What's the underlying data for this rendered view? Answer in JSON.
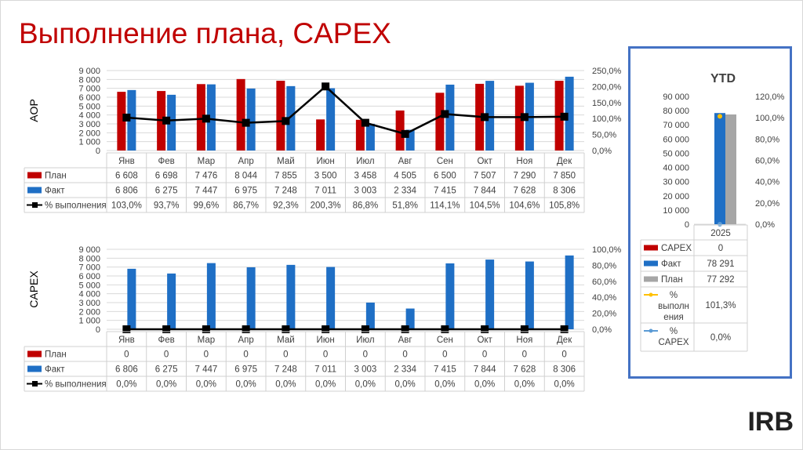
{
  "page_title": "Выполнение плана, CAPEX",
  "logo_text": "IRB",
  "colors": {
    "plan": "#c00000",
    "fact": "#1f6fc5",
    "pct": "#000000",
    "ytd_plan": "#a6a6a6",
    "ytd_capex_pct": "#5b9bd5",
    "ytd_exec_pct": "#ffc000",
    "title": "#c00000",
    "frame": "#4472c4"
  },
  "chart_data": [
    {
      "type": "bar",
      "ylabel": "AOP",
      "categories": [
        "Янв",
        "Фев",
        "Мар",
        "Апр",
        "Май",
        "Июн",
        "Июл",
        "Авг",
        "Сен",
        "Окт",
        "Ноя",
        "Дек"
      ],
      "y_ticks": [
        "0",
        "1 000",
        "2 000",
        "3 000",
        "4 000",
        "5 000",
        "6 000",
        "7 000",
        "8 000",
        "9 000"
      ],
      "y2_ticks": [
        "0,0%",
        "50,0%",
        "100,0%",
        "150,0%",
        "200,0%",
        "250,0%"
      ],
      "ylim": [
        0,
        9000
      ],
      "y2lim": [
        0,
        250
      ],
      "series": [
        {
          "name": "План",
          "kind": "bar",
          "values": [
            6608,
            6698,
            7476,
            8044,
            7855,
            3500,
            3458,
            4505,
            6500,
            7507,
            7290,
            7850
          ],
          "labels": [
            "6 608",
            "6 698",
            "7 476",
            "8 044",
            "7 855",
            "3 500",
            "3 458",
            "4 505",
            "6 500",
            "7 507",
            "7 290",
            "7 850"
          ]
        },
        {
          "name": "Факт",
          "kind": "bar",
          "values": [
            6806,
            6275,
            7447,
            6975,
            7248,
            7011,
            3003,
            2334,
            7415,
            7844,
            7628,
            8306
          ],
          "labels": [
            "6 806",
            "6 275",
            "7 447",
            "6 975",
            "7 248",
            "7 011",
            "3 003",
            "2 334",
            "7 415",
            "7 844",
            "7 628",
            "8 306"
          ]
        },
        {
          "name": "% выполнения",
          "kind": "line",
          "values": [
            103.0,
            93.7,
            99.6,
            86.7,
            92.3,
            200.3,
            86.8,
            51.8,
            114.1,
            104.5,
            104.6,
            105.8
          ],
          "labels": [
            "103,0%",
            "93,7%",
            "99,6%",
            "86,7%",
            "92,3%",
            "200,3%",
            "86,8%",
            "51,8%",
            "114,1%",
            "104,5%",
            "104,6%",
            "105,8%"
          ]
        }
      ]
    },
    {
      "type": "bar",
      "ylabel": "CAPEX",
      "categories": [
        "Янв",
        "Фев",
        "Мар",
        "Апр",
        "Май",
        "Июн",
        "Июл",
        "Авг",
        "Сен",
        "Окт",
        "Ноя",
        "Дек"
      ],
      "y_ticks": [
        "0",
        "1 000",
        "2 000",
        "3 000",
        "4 000",
        "5 000",
        "6 000",
        "7 000",
        "8 000",
        "9 000"
      ],
      "y2_ticks": [
        "0,0%",
        "20,0%",
        "40,0%",
        "60,0%",
        "80,0%",
        "100,0%"
      ],
      "ylim": [
        0,
        9000
      ],
      "y2lim": [
        0,
        100
      ],
      "series": [
        {
          "name": "План",
          "kind": "bar",
          "values": [
            0,
            0,
            0,
            0,
            0,
            0,
            0,
            0,
            0,
            0,
            0,
            0
          ],
          "labels": [
            "0",
            "0",
            "0",
            "0",
            "0",
            "0",
            "0",
            "0",
            "0",
            "0",
            "0",
            "0"
          ]
        },
        {
          "name": "Факт",
          "kind": "bar",
          "values": [
            6806,
            6275,
            7447,
            6975,
            7248,
            7011,
            3003,
            2334,
            7415,
            7844,
            7628,
            8306
          ],
          "labels": [
            "6 806",
            "6 275",
            "7 447",
            "6 975",
            "7 248",
            "7 011",
            "3 003",
            "2 334",
            "7 415",
            "7 844",
            "7 628",
            "8 306"
          ]
        },
        {
          "name": "% выполнения",
          "kind": "line",
          "values": [
            0,
            0,
            0,
            0,
            0,
            0,
            0,
            0,
            0,
            0,
            0,
            0
          ],
          "labels": [
            "0,0%",
            "0,0%",
            "0,0%",
            "0,0%",
            "0,0%",
            "0,0%",
            "0,0%",
            "0,0%",
            "0,0%",
            "0,0%",
            "0,0%",
            "0,0%"
          ]
        }
      ]
    },
    {
      "type": "bar",
      "title": "YTD",
      "categories": [
        "2025"
      ],
      "y_ticks": [
        "0",
        "10 000",
        "20 000",
        "30 000",
        "40 000",
        "50 000",
        "60 000",
        "70 000",
        "80 000",
        "90 000"
      ],
      "y2_ticks": [
        "0,0%",
        "20,0%",
        "40,0%",
        "60,0%",
        "80,0%",
        "100,0%",
        "120,0%"
      ],
      "ylim": [
        0,
        90000
      ],
      "y2lim": [
        0,
        120
      ],
      "series": [
        {
          "name": "CAPEX",
          "kind": "bar",
          "values": [
            0
          ],
          "labels": [
            "0"
          ]
        },
        {
          "name": "Факт",
          "kind": "bar",
          "values": [
            78291
          ],
          "labels": [
            "78 291"
          ]
        },
        {
          "name": "План",
          "kind": "bar",
          "values": [
            77292
          ],
          "labels": [
            "77 292"
          ]
        },
        {
          "name": "% выполнения",
          "kind": "line",
          "values": [
            101.3
          ],
          "labels": [
            "101,3%"
          ]
        },
        {
          "name": "% CAPEX",
          "kind": "line",
          "values": [
            0
          ],
          "labels": [
            "0,0%"
          ]
        }
      ]
    }
  ]
}
